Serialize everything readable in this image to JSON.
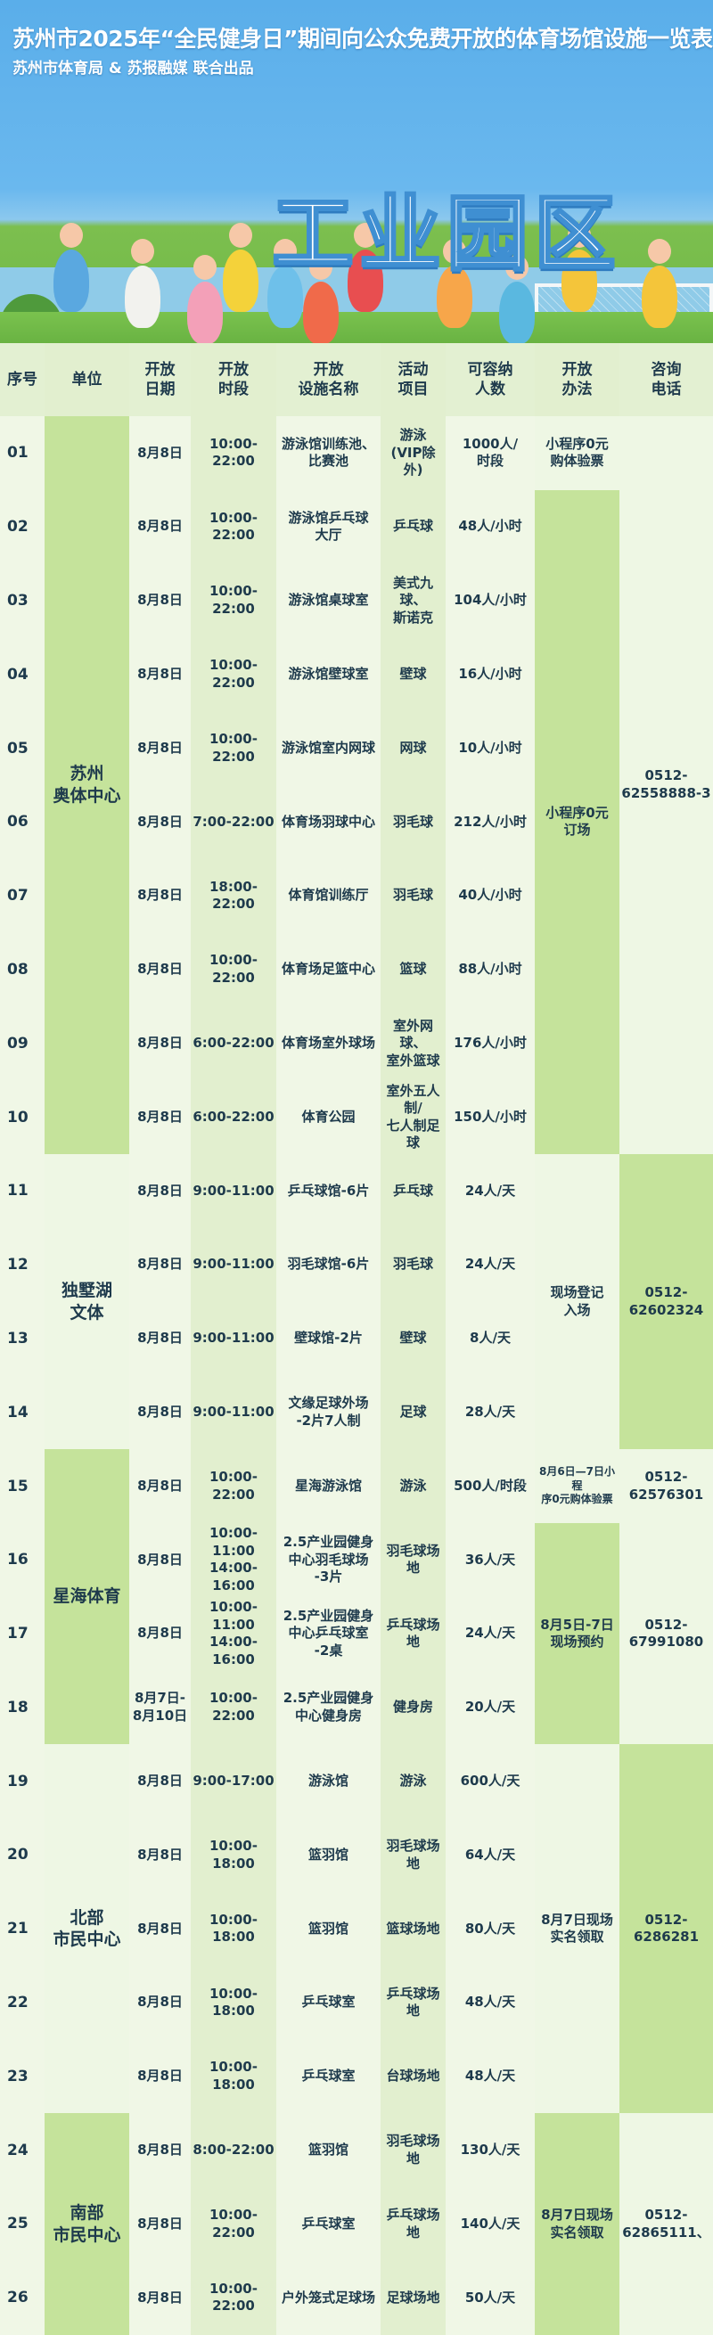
{
  "header": {
    "title": "苏州市2025年“全民健身日”期间向公众免费开放的体育场馆设施一览表",
    "subtitle": "苏州市体育局 & 苏报融媒 联合出品",
    "district": "工业园区"
  },
  "colors": {
    "highlight": "#c5e39b",
    "pale": "#eef7e4",
    "text": "#1e3a4c",
    "sky": "#5aaeea"
  },
  "table": {
    "columns": [
      "序号",
      "单位",
      "开放\n日期",
      "开放\n时段",
      "开放\n设施名称",
      "活动\n项目",
      "可容纳\n人数",
      "开放\n办法",
      "咨询\n电话"
    ],
    "rows": [
      {
        "no": "01",
        "date": "8月8日",
        "time": "10:00-22:00",
        "facility": "游泳馆训练池、\n比赛池",
        "activity": "游泳\n(VIP除外)",
        "capacity": "1000人/\n时段"
      },
      {
        "no": "02",
        "date": "8月8日",
        "time": "10:00-22:00",
        "facility": "游泳馆乒乓球\n大厅",
        "activity": "乒乓球",
        "capacity": "48人/小时"
      },
      {
        "no": "03",
        "date": "8月8日",
        "time": "10:00-22:00",
        "facility": "游泳馆桌球室",
        "activity": "美式九球、\n斯诺克",
        "capacity": "104人/小时"
      },
      {
        "no": "04",
        "date": "8月8日",
        "time": "10:00-22:00",
        "facility": "游泳馆壁球室",
        "activity": "壁球",
        "capacity": "16人/小时"
      },
      {
        "no": "05",
        "date": "8月8日",
        "time": "10:00-22:00",
        "facility": "游泳馆室内网球",
        "activity": "网球",
        "capacity": "10人/小时"
      },
      {
        "no": "06",
        "date": "8月8日",
        "time": "7:00-22:00",
        "facility": "体育场羽球中心",
        "activity": "羽毛球",
        "capacity": "212人/小时"
      },
      {
        "no": "07",
        "date": "8月8日",
        "time": "18:00-22:00",
        "facility": "体育馆训练厅",
        "activity": "羽毛球",
        "capacity": "40人/小时"
      },
      {
        "no": "08",
        "date": "8月8日",
        "time": "10:00-22:00",
        "facility": "体育场足篮中心",
        "activity": "篮球",
        "capacity": "88人/小时"
      },
      {
        "no": "09",
        "date": "8月8日",
        "time": "6:00-22:00",
        "facility": "体育场室外球场",
        "activity": "室外网球、\n室外篮球",
        "capacity": "176人/小时"
      },
      {
        "no": "10",
        "date": "8月8日",
        "time": "6:00-22:00",
        "facility": "体育公园",
        "activity": "室外五人制/\n七人制足球",
        "capacity": "150人/小时"
      },
      {
        "no": "11",
        "date": "8月8日",
        "time": "9:00-11:00",
        "facility": "乒乓球馆-6片",
        "activity": "乒乓球",
        "capacity": "24人/天"
      },
      {
        "no": "12",
        "date": "8月8日",
        "time": "9:00-11:00",
        "facility": "羽毛球馆-6片",
        "activity": "羽毛球",
        "capacity": "24人/天"
      },
      {
        "no": "13",
        "date": "8月8日",
        "time": "9:00-11:00",
        "facility": "壁球馆-2片",
        "activity": "壁球",
        "capacity": "8人/天"
      },
      {
        "no": "14",
        "date": "8月8日",
        "time": "9:00-11:00",
        "facility": "文缘足球外场\n-2片7人制",
        "activity": "足球",
        "capacity": "28人/天"
      },
      {
        "no": "15",
        "date": "8月8日",
        "time": "10:00-22:00",
        "facility": "星海游泳馆",
        "activity": "游泳",
        "capacity": "500人/时段"
      },
      {
        "no": "16",
        "date": "8月8日",
        "time": "10:00-11:00\n14:00-16:00",
        "facility": "2.5产业园健身\n中心羽毛球场\n-3片",
        "activity": "羽毛球场地",
        "capacity": "36人/天"
      },
      {
        "no": "17",
        "date": "8月8日",
        "time": "10:00-11:00\n14:00-16:00",
        "facility": "2.5产业园健身\n中心乒乓球室\n-2桌",
        "activity": "乒乓球场地",
        "capacity": "24人/天"
      },
      {
        "no": "18",
        "date": "8月7日-\n8月10日",
        "time": "10:00-22:00",
        "facility": "2.5产业园健身\n中心健身房",
        "activity": "健身房",
        "capacity": "20人/天"
      },
      {
        "no": "19",
        "date": "8月8日",
        "time": "9:00-17:00",
        "facility": "游泳馆",
        "activity": "游泳",
        "capacity": "600人/天"
      },
      {
        "no": "20",
        "date": "8月8日",
        "time": "10:00-18:00",
        "facility": "篮羽馆",
        "activity": "羽毛球场地",
        "capacity": "64人/天"
      },
      {
        "no": "21",
        "date": "8月8日",
        "time": "10:00-18:00",
        "facility": "篮羽馆",
        "activity": "篮球场地",
        "capacity": "80人/天"
      },
      {
        "no": "22",
        "date": "8月8日",
        "time": "10:00-18:00",
        "facility": "乒乓球室",
        "activity": "乒乓球场地",
        "capacity": "48人/天"
      },
      {
        "no": "23",
        "date": "8月8日",
        "time": "10:00-18:00",
        "facility": "乒乓球室",
        "activity": "台球场地",
        "capacity": "48人/天"
      },
      {
        "no": "24",
        "date": "8月8日",
        "time": "8:00-22:00",
        "facility": "篮羽馆",
        "activity": "羽毛球场地",
        "capacity": "130人/天"
      },
      {
        "no": "25",
        "date": "8月8日",
        "time": "10:00-22:00",
        "facility": "乒乓球室",
        "activity": "乒乓球场地",
        "capacity": "140人/天"
      },
      {
        "no": "26",
        "date": "8月8日",
        "time": "10:00-22:00",
        "facility": "户外笼式足球场",
        "activity": "足球场地",
        "capacity": "50人/天"
      }
    ],
    "units": [
      {
        "label": "苏州\n奥体中心",
        "first": 1,
        "last": 10,
        "tone": "g"
      },
      {
        "label": "独墅湖\n文体",
        "first": 11,
        "last": 14,
        "tone": "p"
      },
      {
        "label": "星海体育",
        "first": 15,
        "last": 18,
        "tone": "g"
      },
      {
        "label": "北部\n市民中心",
        "first": 19,
        "last": 23,
        "tone": "p"
      },
      {
        "label": "南部\n市民中心",
        "first": 24,
        "last": 26,
        "tone": "g"
      }
    ],
    "methods": [
      {
        "label": "小程序0元\n购体验票",
        "first": 1,
        "last": 1,
        "tone": "p"
      },
      {
        "label": "小程序0元\n订场",
        "first": 2,
        "last": 10,
        "tone": "g"
      },
      {
        "label": "现场登记\n入场",
        "first": 11,
        "last": 14,
        "tone": "p"
      },
      {
        "label": "8月6日—7日小程\n序0元购体验票",
        "first": 15,
        "last": 15,
        "tone": "p",
        "small": true
      },
      {
        "label": "8月5日-7日\n现场预约",
        "first": 16,
        "last": 18,
        "tone": "g"
      },
      {
        "label": "8月7日现场\n实名领取",
        "first": 19,
        "last": 23,
        "tone": "p"
      },
      {
        "label": "8月7日现场\n实名领取",
        "first": 24,
        "last": 26,
        "tone": "g"
      }
    ],
    "phones": [
      {
        "label": "0512-\n62558888-3",
        "first": 1,
        "last": 10,
        "tone": "p"
      },
      {
        "label": "0512-\n62602324",
        "first": 11,
        "last": 14,
        "tone": "g"
      },
      {
        "label": "0512-\n62576301",
        "first": 15,
        "last": 15,
        "tone": "p"
      },
      {
        "label": "0512-\n67991080",
        "first": 16,
        "last": 18,
        "tone": "p"
      },
      {
        "label": "0512-\n6286281",
        "first": 19,
        "last": 23,
        "tone": "g"
      },
      {
        "label": "0512-\n62865111、",
        "first": 24,
        "last": 26,
        "tone": "p"
      }
    ]
  }
}
